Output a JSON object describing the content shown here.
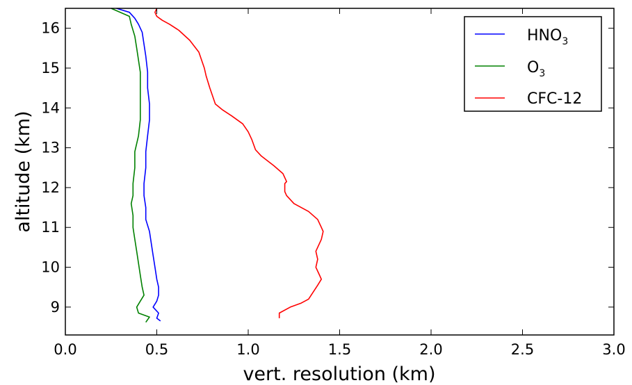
{
  "chart_data": {
    "type": "line",
    "xlabel": "vert. resolution (km)",
    "ylabel": "altitude (km)",
    "xlim": [
      0.0,
      3.0
    ],
    "ylim": [
      8.3,
      16.5
    ],
    "x_ticks": [
      0.0,
      0.5,
      1.0,
      1.5,
      2.0,
      2.5,
      3.0
    ],
    "x_tick_labels": [
      "0.0",
      "0.5",
      "1.0",
      "1.5",
      "2.0",
      "2.5",
      "3.0"
    ],
    "y_ticks": [
      9,
      10,
      11,
      12,
      13,
      14,
      15,
      16
    ],
    "y_tick_labels": [
      "9",
      "10",
      "11",
      "12",
      "13",
      "14",
      "15",
      "16"
    ],
    "grid": false,
    "legend_position": "top-right",
    "series": [
      {
        "name": "HNO3",
        "label_main": "HNO",
        "label_sub": "3",
        "color": "#0000ff",
        "points": [
          [
            0.52,
            8.65
          ],
          [
            0.5,
            8.72
          ],
          [
            0.51,
            8.85
          ],
          [
            0.48,
            9.0
          ],
          [
            0.5,
            9.15
          ],
          [
            0.51,
            9.3
          ],
          [
            0.51,
            9.5
          ],
          [
            0.5,
            9.7
          ],
          [
            0.49,
            10.0
          ],
          [
            0.48,
            10.3
          ],
          [
            0.47,
            10.6
          ],
          [
            0.46,
            10.9
          ],
          [
            0.44,
            11.2
          ],
          [
            0.44,
            11.5
          ],
          [
            0.43,
            11.8
          ],
          [
            0.43,
            12.1
          ],
          [
            0.44,
            12.5
          ],
          [
            0.44,
            12.9
          ],
          [
            0.45,
            13.3
          ],
          [
            0.46,
            13.7
          ],
          [
            0.46,
            14.1
          ],
          [
            0.45,
            14.5
          ],
          [
            0.45,
            14.9
          ],
          [
            0.44,
            15.3
          ],
          [
            0.43,
            15.6
          ],
          [
            0.42,
            15.9
          ],
          [
            0.4,
            16.1
          ],
          [
            0.38,
            16.25
          ],
          [
            0.35,
            16.4
          ],
          [
            0.28,
            16.5
          ]
        ]
      },
      {
        "name": "O3",
        "label_main": "O",
        "label_sub": "3",
        "color": "#008000",
        "points": [
          [
            0.44,
            8.62
          ],
          [
            0.46,
            8.75
          ],
          [
            0.4,
            8.85
          ],
          [
            0.39,
            9.0
          ],
          [
            0.41,
            9.15
          ],
          [
            0.43,
            9.3
          ],
          [
            0.42,
            9.5
          ],
          [
            0.41,
            9.8
          ],
          [
            0.4,
            10.1
          ],
          [
            0.39,
            10.4
          ],
          [
            0.38,
            10.7
          ],
          [
            0.37,
            11.0
          ],
          [
            0.37,
            11.3
          ],
          [
            0.36,
            11.6
          ],
          [
            0.37,
            11.8
          ],
          [
            0.37,
            12.1
          ],
          [
            0.38,
            12.5
          ],
          [
            0.38,
            12.9
          ],
          [
            0.4,
            13.3
          ],
          [
            0.41,
            13.7
          ],
          [
            0.41,
            14.1
          ],
          [
            0.41,
            14.5
          ],
          [
            0.41,
            14.9
          ],
          [
            0.4,
            15.2
          ],
          [
            0.39,
            15.5
          ],
          [
            0.38,
            15.8
          ],
          [
            0.36,
            16.1
          ],
          [
            0.35,
            16.3
          ],
          [
            0.25,
            16.5
          ]
        ]
      },
      {
        "name": "CFC-12",
        "label_main": "CFC-12",
        "label_sub": "",
        "color": "#ff0000",
        "points": [
          [
            1.17,
            8.72
          ],
          [
            1.17,
            8.85
          ],
          [
            1.23,
            9.0
          ],
          [
            1.29,
            9.1
          ],
          [
            1.33,
            9.2
          ],
          [
            1.38,
            9.55
          ],
          [
            1.4,
            9.7
          ],
          [
            1.39,
            9.8
          ],
          [
            1.37,
            10.0
          ],
          [
            1.38,
            10.2
          ],
          [
            1.37,
            10.4
          ],
          [
            1.38,
            10.5
          ],
          [
            1.4,
            10.7
          ],
          [
            1.41,
            10.9
          ],
          [
            1.4,
            11.0
          ],
          [
            1.38,
            11.2
          ],
          [
            1.33,
            11.4
          ],
          [
            1.25,
            11.6
          ],
          [
            1.21,
            11.8
          ],
          [
            1.2,
            11.9
          ],
          [
            1.2,
            12.1
          ],
          [
            1.21,
            12.15
          ],
          [
            1.19,
            12.35
          ],
          [
            1.14,
            12.55
          ],
          [
            1.07,
            12.8
          ],
          [
            1.04,
            12.95
          ],
          [
            1.02,
            13.2
          ],
          [
            1.0,
            13.4
          ],
          [
            0.97,
            13.6
          ],
          [
            0.91,
            13.8
          ],
          [
            0.86,
            13.95
          ],
          [
            0.82,
            14.1
          ],
          [
            0.79,
            14.5
          ],
          [
            0.77,
            14.8
          ],
          [
            0.76,
            15.0
          ],
          [
            0.73,
            15.4
          ],
          [
            0.68,
            15.7
          ],
          [
            0.62,
            15.95
          ],
          [
            0.57,
            16.1
          ],
          [
            0.53,
            16.2
          ],
          [
            0.5,
            16.3
          ],
          [
            0.49,
            16.4
          ],
          [
            0.5,
            16.5
          ]
        ]
      }
    ]
  }
}
